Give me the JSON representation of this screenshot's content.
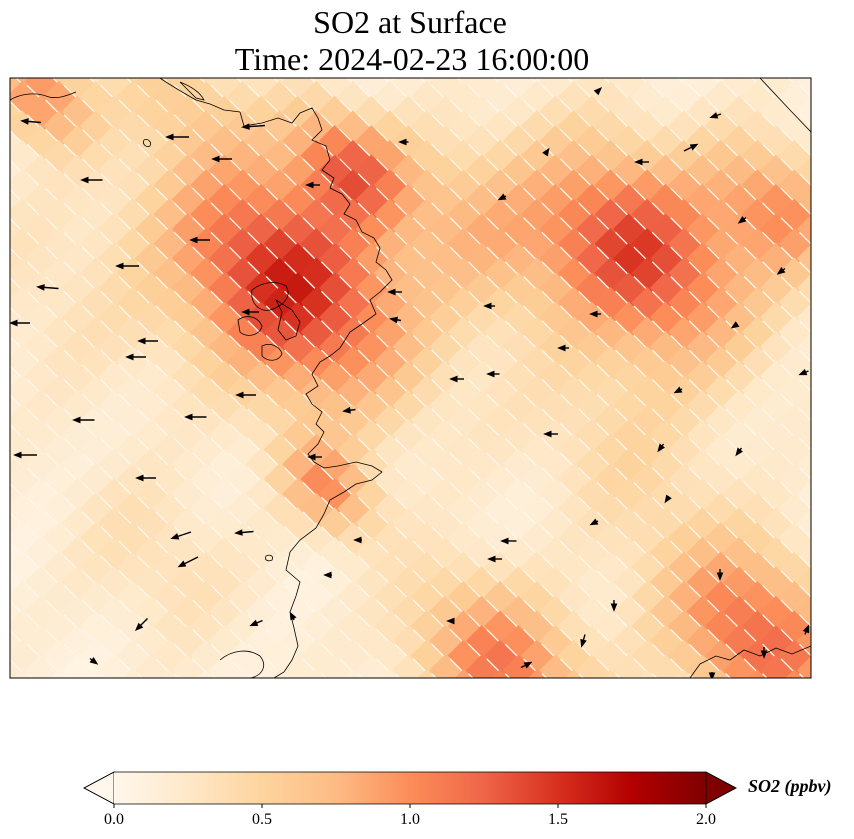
{
  "title": {
    "line1": "SO2 at Surface",
    "line2": "Time: 2024-02-23 16:00:00"
  },
  "colorbar": {
    "label": "SO2 (ppbv)",
    "ticks": [
      "0.0",
      "0.5",
      "1.0",
      "1.5",
      "2.0"
    ],
    "range": [
      0.0,
      2.0
    ],
    "extend": "both",
    "colors": [
      "#fff7ec",
      "#fee8c8",
      "#fdd49e",
      "#fdbb84",
      "#fc8d59",
      "#ef6548",
      "#d7301f",
      "#b30000",
      "#7f0000"
    ]
  },
  "map": {
    "colormap": "OrRd",
    "coastlines": true,
    "wind_vectors": true
  }
}
